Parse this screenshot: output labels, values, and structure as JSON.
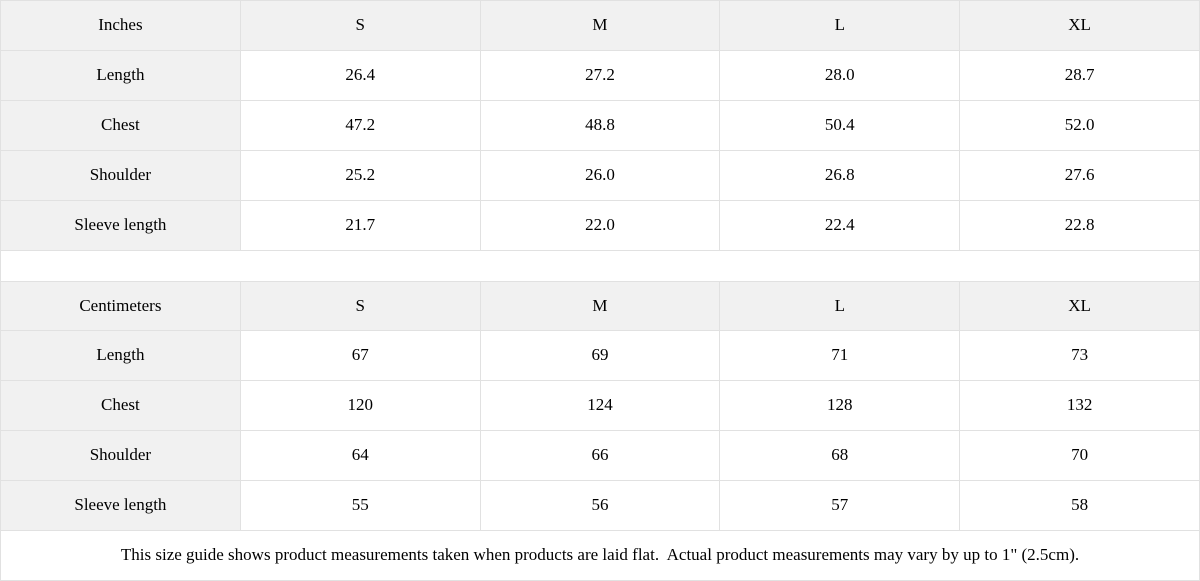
{
  "theme": {
    "shaded_cell_bg": "#f1f1f1",
    "border_color": "#e1e1e1",
    "text_color": "#000000",
    "background": "#ffffff"
  },
  "size_guide": {
    "tables": [
      {
        "unit_label": "Inches",
        "sizes": [
          "S",
          "M",
          "L",
          "XL"
        ],
        "rows": [
          {
            "label": "Length",
            "values": [
              "26.4",
              "27.2",
              "28.0",
              "28.7"
            ]
          },
          {
            "label": "Chest",
            "values": [
              "47.2",
              "48.8",
              "50.4",
              "52.0"
            ]
          },
          {
            "label": "Shoulder",
            "values": [
              "25.2",
              "26.0",
              "26.8",
              "27.6"
            ]
          },
          {
            "label": "Sleeve length",
            "values": [
              "21.7",
              "22.0",
              "22.4",
              "22.8"
            ]
          }
        ]
      },
      {
        "unit_label": "Centimeters",
        "sizes": [
          "S",
          "M",
          "L",
          "XL"
        ],
        "rows": [
          {
            "label": "Length",
            "values": [
              "67",
              "69",
              "71",
              "73"
            ]
          },
          {
            "label": "Chest",
            "values": [
              "120",
              "124",
              "128",
              "132"
            ]
          },
          {
            "label": "Shoulder",
            "values": [
              "64",
              "66",
              "68",
              "70"
            ]
          },
          {
            "label": "Sleeve length",
            "values": [
              "55",
              "56",
              "57",
              "58"
            ]
          }
        ]
      }
    ],
    "footnote": "This size guide shows product measurements taken when products are laid flat.  Actual product measurements may vary by up to 1\" (2.5cm)."
  }
}
